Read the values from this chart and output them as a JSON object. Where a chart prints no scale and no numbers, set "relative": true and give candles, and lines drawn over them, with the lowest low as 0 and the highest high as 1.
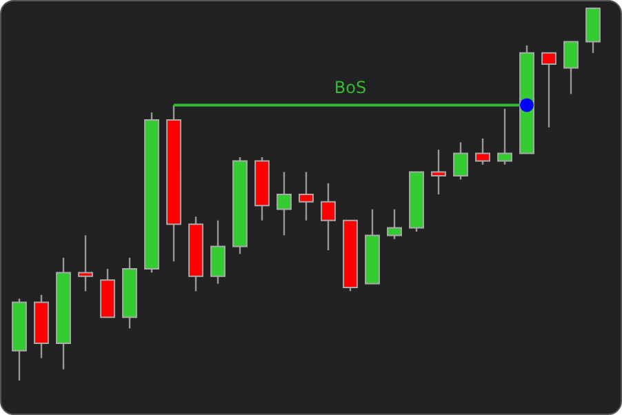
{
  "chart_data": {
    "type": "candlestick",
    "relative": true,
    "legend": false,
    "categories": [
      null,
      null,
      null,
      null,
      null,
      null,
      null,
      null,
      null,
      null,
      null,
      null,
      null,
      null,
      null,
      null,
      null,
      null,
      null,
      null,
      null,
      null,
      null,
      null,
      null,
      null,
      null
    ],
    "ohlc": [
      [
        0.08,
        0.22,
        0,
        0.21
      ],
      [
        0.21,
        0.23,
        0.06,
        0.1
      ],
      [
        0.1,
        0.33,
        0.03,
        0.29
      ],
      [
        0.29,
        0.39,
        0.24,
        0.28
      ],
      [
        0.27,
        0.3,
        0.17,
        0.17
      ],
      [
        0.17,
        0.33,
        0.14,
        0.3
      ],
      [
        0.3,
        0.72,
        0.29,
        0.7
      ],
      [
        0.7,
        0.74,
        0.32,
        0.42
      ],
      [
        0.42,
        0.44,
        0.24,
        0.28
      ],
      [
        0.28,
        0.43,
        0.26,
        0.36
      ],
      [
        0.36,
        0.6,
        0.34,
        0.59
      ],
      [
        0.59,
        0.6,
        0.43,
        0.47
      ],
      [
        0.46,
        0.56,
        0.39,
        0.5
      ],
      [
        0.5,
        0.56,
        0.43,
        0.48
      ],
      [
        0.48,
        0.53,
        0.35,
        0.43
      ],
      [
        0.43,
        0.43,
        0.24,
        0.25
      ],
      [
        0.26,
        0.46,
        0.26,
        0.39
      ],
      [
        0.39,
        0.46,
        0.38,
        0.41
      ],
      [
        0.41,
        0.56,
        0.4,
        0.56
      ],
      [
        0.56,
        0.62,
        0.5,
        0.55
      ],
      [
        0.55,
        0.64,
        0.54,
        0.61
      ],
      [
        0.61,
        0.65,
        0.58,
        0.59
      ],
      [
        0.59,
        0.73,
        0.58,
        0.61
      ],
      [
        0.61,
        0.9,
        0.61,
        0.88
      ],
      [
        0.88,
        0.88,
        0.68,
        0.85
      ],
      [
        0.84,
        0.91,
        0.77,
        0.91
      ],
      [
        0.91,
        1,
        0.88,
        1
      ]
    ],
    "colors": [
      "#33cc33",
      "#ff0000",
      "#33cc33",
      "#ff0000",
      "#ff0000",
      "#33cc33",
      "#33cc33",
      "#ff0000",
      "#ff0000",
      "#33cc33",
      "#33cc33",
      "#ff0000",
      "#33cc33",
      "#ff0000",
      "#ff0000",
      "#ff0000",
      "#33cc33",
      "#33cc33",
      "#33cc33",
      "#ff0000",
      "#33cc33",
      "#ff0000",
      "#33cc33",
      "#33cc33",
      "#ff0000",
      "#33cc33",
      "#33cc33"
    ],
    "series": [
      {
        "type": "line",
        "color": "#33bb33",
        "values": [
          null,
          null,
          null,
          null,
          null,
          null,
          null,
          0.74,
          null,
          null,
          null,
          null,
          null,
          null,
          null,
          null,
          null,
          null,
          null,
          null,
          null,
          null,
          null,
          0.74,
          null,
          null,
          null
        ]
      },
      {
        "type": "scatter",
        "color": "#0000ff",
        "marker": "circle",
        "values": [
          null,
          null,
          null,
          null,
          null,
          null,
          null,
          null,
          null,
          null,
          null,
          null,
          null,
          null,
          null,
          null,
          null,
          null,
          null,
          null,
          null,
          null,
          null,
          0.74,
          null,
          null,
          null
        ]
      }
    ],
    "annotations": [
      "BoS"
    ]
  }
}
